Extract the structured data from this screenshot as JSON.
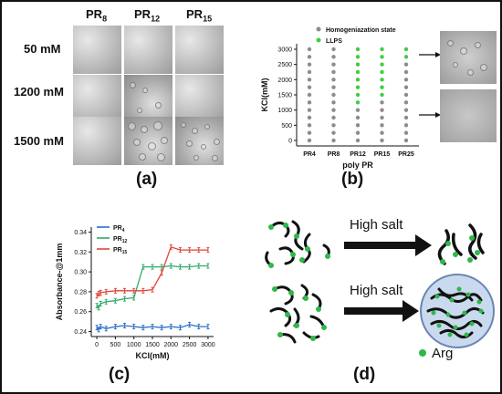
{
  "panels": {
    "a": {
      "label": "(a)",
      "columns": [
        "PR8",
        "PR12",
        "PR15"
      ],
      "column_subscripts": [
        "8",
        "12",
        "15"
      ],
      "column_prefix": "PR",
      "rows": [
        "50 mM",
        "1200 mM",
        "1500 mM"
      ]
    },
    "b": {
      "label": "(b)",
      "legend": [
        "Homogeniazation state",
        "LLPS"
      ],
      "ylabel": "KCl(mM)",
      "xlabel": "poly PR"
    },
    "c": {
      "label": "(c)"
    },
    "d": {
      "label": "(d)",
      "high_salt_1": "High salt",
      "high_salt_2": "High salt",
      "arg_label": "Arg"
    }
  },
  "colors": {
    "gray_dot": "#8c8c8c",
    "llps_green": "#3fcf3f",
    "pr4_blue": "#2a6fc7",
    "pr12_green": "#2eaa6a",
    "pr15_red": "#e0443a",
    "arg_green": "#2fb84a"
  },
  "chart_data": [
    {
      "type": "scatter",
      "panel": "b",
      "categories": [
        "PR4",
        "PR8",
        "PR12",
        "PR15",
        "PR25"
      ],
      "y_ticks": [
        0,
        500,
        1000,
        1500,
        2000,
        2500,
        3000
      ],
      "ylim": [
        0,
        3000
      ],
      "ylabel": "KCl(mM)",
      "xlabel": "poly PR",
      "y_levels": [
        0,
        250,
        500,
        750,
        1000,
        1250,
        1500,
        1750,
        2000,
        2250,
        2500,
        2750,
        3000
      ],
      "series": [
        {
          "name": "Homogeniazation state",
          "points": [
            [
              "PR4",
              0
            ],
            [
              "PR4",
              250
            ],
            [
              "PR4",
              500
            ],
            [
              "PR4",
              750
            ],
            [
              "PR4",
              1000
            ],
            [
              "PR4",
              1250
            ],
            [
              "PR4",
              1500
            ],
            [
              "PR4",
              1750
            ],
            [
              "PR4",
              2000
            ],
            [
              "PR4",
              2250
            ],
            [
              "PR4",
              2500
            ],
            [
              "PR4",
              2750
            ],
            [
              "PR4",
              3000
            ],
            [
              "PR8",
              0
            ],
            [
              "PR8",
              250
            ],
            [
              "PR8",
              500
            ],
            [
              "PR8",
              750
            ],
            [
              "PR8",
              1000
            ],
            [
              "PR8",
              1250
            ],
            [
              "PR8",
              1500
            ],
            [
              "PR8",
              1750
            ],
            [
              "PR8",
              2000
            ],
            [
              "PR8",
              2250
            ],
            [
              "PR8",
              2500
            ],
            [
              "PR8",
              2750
            ],
            [
              "PR8",
              3000
            ],
            [
              "PR12",
              0
            ],
            [
              "PR12",
              250
            ],
            [
              "PR12",
              500
            ],
            [
              "PR12",
              750
            ],
            [
              "PR12",
              1000
            ],
            [
              "PR15",
              0
            ],
            [
              "PR15",
              250
            ],
            [
              "PR15",
              500
            ],
            [
              "PR15",
              750
            ],
            [
              "PR15",
              1000
            ],
            [
              "PR15",
              1250
            ],
            [
              "PR25",
              0
            ],
            [
              "PR25",
              250
            ],
            [
              "PR25",
              500
            ],
            [
              "PR25",
              750
            ],
            [
              "PR25",
              1000
            ],
            [
              "PR25",
              1250
            ],
            [
              "PR25",
              1500
            ],
            [
              "PR25",
              1750
            ],
            [
              "PR25",
              2000
            ],
            [
              "PR25",
              2250
            ],
            [
              "PR25",
              2500
            ]
          ]
        },
        {
          "name": "LLPS",
          "points": [
            [
              "PR12",
              1250
            ],
            [
              "PR12",
              1500
            ],
            [
              "PR12",
              1750
            ],
            [
              "PR12",
              2000
            ],
            [
              "PR12",
              2250
            ],
            [
              "PR12",
              2500
            ],
            [
              "PR12",
              2750
            ],
            [
              "PR12",
              3000
            ],
            [
              "PR15",
              1500
            ],
            [
              "PR15",
              1750
            ],
            [
              "PR15",
              2000
            ],
            [
              "PR15",
              2250
            ],
            [
              "PR15",
              2500
            ],
            [
              "PR15",
              2750
            ],
            [
              "PR15",
              3000
            ],
            [
              "PR25",
              2750
            ],
            [
              "PR25",
              3000
            ]
          ]
        }
      ]
    },
    {
      "type": "line",
      "panel": "c",
      "xlabel": "KCl(mM)",
      "ylabel": "Absorbance-@1mm",
      "x_ticks": [
        0,
        500,
        1000,
        1500,
        2000,
        2500,
        3000
      ],
      "y_ticks": [
        0.24,
        0.26,
        0.28,
        0.3,
        0.32,
        0.34
      ],
      "xlim": [
        -150,
        3150
      ],
      "ylim": [
        0.235,
        0.345
      ],
      "x": [
        0,
        50,
        100,
        250,
        500,
        750,
        1000,
        1250,
        1500,
        1750,
        2000,
        2250,
        2500,
        2750,
        3000
      ],
      "series": [
        {
          "name": "PR4",
          "legend_sub": "4",
          "color_key": "pr4_blue",
          "values": [
            0.244,
            0.242,
            0.245,
            0.243,
            0.245,
            0.246,
            0.245,
            0.244,
            0.245,
            0.244,
            0.245,
            0.244,
            0.247,
            0.245,
            0.245
          ]
        },
        {
          "name": "PR12",
          "legend_sub": "12",
          "color_key": "pr12_green",
          "values": [
            0.266,
            0.264,
            0.268,
            0.27,
            0.271,
            0.273,
            0.274,
            0.305,
            0.305,
            0.305,
            0.306,
            0.305,
            0.305,
            0.306,
            0.306
          ]
        },
        {
          "name": "PR15",
          "legend_sub": "15",
          "color_key": "pr15_red",
          "values": [
            0.276,
            0.278,
            0.279,
            0.28,
            0.281,
            0.281,
            0.281,
            0.281,
            0.282,
            0.299,
            0.325,
            0.322,
            0.322,
            0.322,
            0.322
          ]
        }
      ]
    }
  ]
}
